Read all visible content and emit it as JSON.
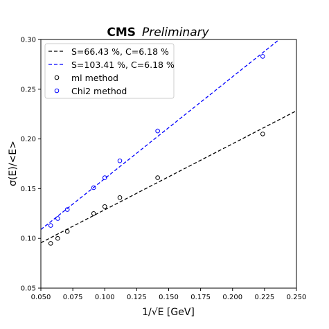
{
  "chart_data": {
    "type": "scatter",
    "title_bold": "CMS",
    "title_italic": "Preliminary",
    "xlabel": "1/√E [GeV]",
    "ylabel": "σ(E)/<E>",
    "xlim": [
      0.05,
      0.25
    ],
    "ylim": [
      0.05,
      0.3
    ],
    "xticks": [
      "0.050",
      "0.075",
      "0.100",
      "0.125",
      "0.150",
      "0.175",
      "0.200",
      "0.225",
      "0.250"
    ],
    "yticks": [
      "0.05",
      "0.10",
      "0.15",
      "0.20",
      "0.25",
      "0.30"
    ],
    "legend_position": "upper-left",
    "series": [
      {
        "name": "S=66.43 %, C=6.18 %",
        "kind": "fit-line",
        "color": "#000000",
        "x": [
          0.05,
          0.25
        ],
        "y": [
          0.0956,
          0.2283
        ]
      },
      {
        "name": "S=103.41 %, C=6.18 %",
        "kind": "fit-line",
        "color": "#0000ff",
        "x": [
          0.05,
          0.2366
        ],
        "y": [
          0.1089,
          0.3
        ]
      },
      {
        "name": "ml method",
        "kind": "points",
        "color": "#000000",
        "x": [
          0.0577,
          0.0632,
          0.0707,
          0.0913,
          0.1,
          0.1118,
          0.1414,
          0.2236
        ],
        "y": [
          0.095,
          0.1,
          0.107,
          0.125,
          0.132,
          0.141,
          0.161,
          0.205
        ]
      },
      {
        "name": "Chi2 method",
        "kind": "points",
        "color": "#0000ff",
        "x": [
          0.0577,
          0.0632,
          0.0707,
          0.0913,
          0.1,
          0.1118,
          0.1414,
          0.2236
        ],
        "y": [
          0.113,
          0.12,
          0.129,
          0.151,
          0.161,
          0.178,
          0.208,
          0.283
        ]
      }
    ]
  }
}
